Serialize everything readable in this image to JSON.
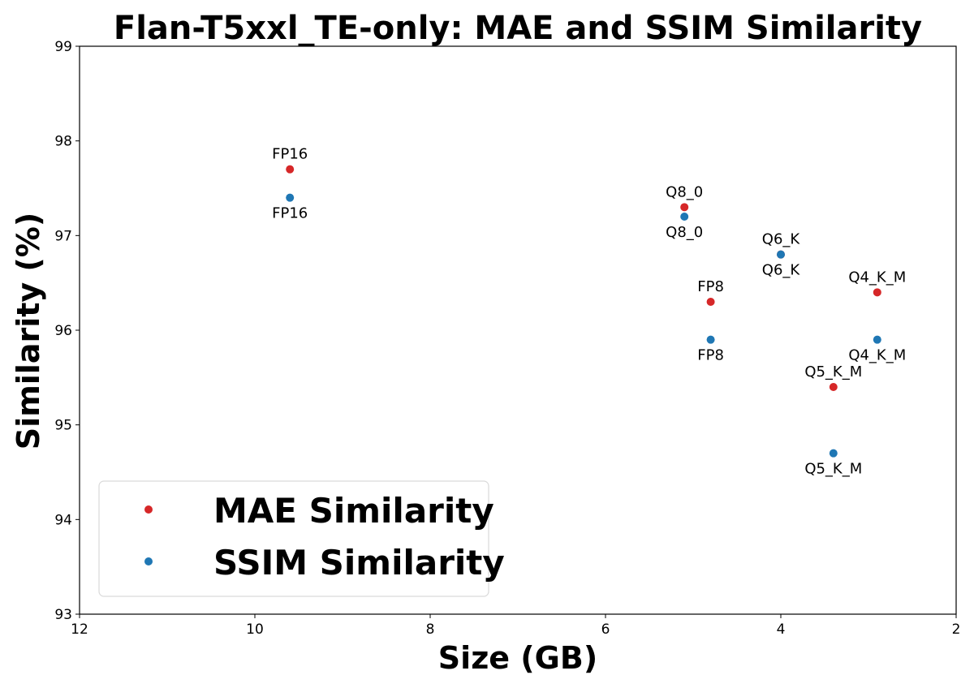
{
  "chart_data": {
    "type": "scatter",
    "title": "Flan-T5xxl_TE-only: MAE and SSIM Similarity",
    "xlabel": "Size (GB)",
    "ylabel": "Similarity (%)",
    "xlim": [
      12,
      2
    ],
    "x_reversed": true,
    "ylim": [
      93,
      99
    ],
    "xticks": [
      12,
      10,
      8,
      6,
      4,
      2
    ],
    "yticks": [
      93,
      94,
      95,
      96,
      97,
      98,
      99
    ],
    "grid": false,
    "legend_position": "lower-left",
    "series": [
      {
        "name": "MAE Similarity",
        "color": "#d62728",
        "label_position": "above",
        "points": [
          {
            "label": "FP16",
            "x": 9.6,
            "y": 97.7
          },
          {
            "label": "Q8_0",
            "x": 5.1,
            "y": 97.3
          },
          {
            "label": "FP8",
            "x": 4.8,
            "y": 96.3
          },
          {
            "label": "Q6_K",
            "x": 4.0,
            "y": 96.8
          },
          {
            "label": "Q5_K_M",
            "x": 3.4,
            "y": 95.4
          },
          {
            "label": "Q4_K_M",
            "x": 2.9,
            "y": 96.4
          }
        ]
      },
      {
        "name": "SSIM Similarity",
        "color": "#1f77b4",
        "label_position": "below",
        "points": [
          {
            "label": "FP16",
            "x": 9.6,
            "y": 97.4
          },
          {
            "label": "Q8_0",
            "x": 5.1,
            "y": 97.2
          },
          {
            "label": "FP8",
            "x": 4.8,
            "y": 95.9
          },
          {
            "label": "Q6_K",
            "x": 4.0,
            "y": 96.8
          },
          {
            "label": "Q5_K_M",
            "x": 3.4,
            "y": 94.7
          },
          {
            "label": "Q4_K_M",
            "x": 2.9,
            "y": 95.9
          }
        ]
      }
    ]
  }
}
